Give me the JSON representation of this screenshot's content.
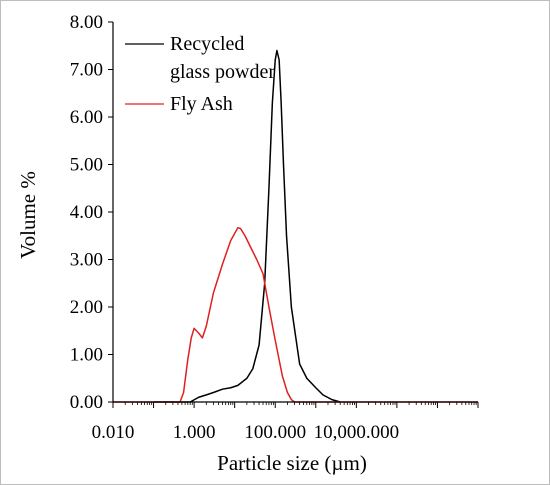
{
  "chart_data": {
    "type": "line",
    "title": "",
    "xlabel": "Particle size (µm)",
    "ylabel": "Volume %",
    "x_scale": "log",
    "xlim": [
      0.01,
      10000000
    ],
    "ylim": [
      0,
      8
    ],
    "x_ticks": [
      "0.010",
      "1.000",
      "100.000",
      "10,000.000"
    ],
    "y_ticks": [
      "0.00",
      "1.00",
      "2.00",
      "3.00",
      "4.00",
      "5.00",
      "6.00",
      "7.00",
      "8.00"
    ],
    "grid": false,
    "legend": "top-left",
    "series": [
      {
        "name": "Recycled glass powder",
        "color": "#000000",
        "x": [
          0.1,
          0.8,
          1.3,
          2.0,
          3.0,
          5.0,
          8.0,
          12,
          20,
          28,
          40,
          55,
          70,
          85,
          100,
          110,
          125,
          140,
          160,
          190,
          250,
          400,
          600,
          1000,
          1500,
          2500,
          4000
        ],
        "y": [
          0,
          0,
          0.1,
          0.15,
          0.2,
          0.27,
          0.3,
          0.35,
          0.5,
          0.7,
          1.2,
          2.5,
          4.5,
          6.3,
          7.2,
          7.4,
          7.2,
          6.3,
          5.0,
          3.5,
          2.0,
          0.8,
          0.5,
          0.3,
          0.15,
          0.05,
          0
        ]
      },
      {
        "name": "Fly Ash",
        "color": "#e02020",
        "x": [
          0.01,
          0.1,
          0.45,
          0.55,
          0.7,
          0.85,
          1.0,
          1.3,
          1.6,
          2.0,
          3.0,
          5.0,
          8.0,
          12,
          14,
          18,
          25,
          35,
          50,
          70,
          100,
          150,
          200,
          250,
          300,
          10000000
        ],
        "y": [
          0,
          0,
          0,
          0.2,
          0.9,
          1.35,
          1.55,
          1.45,
          1.35,
          1.6,
          2.3,
          2.9,
          3.4,
          3.67,
          3.65,
          3.5,
          3.25,
          3.0,
          2.7,
          2.0,
          1.3,
          0.55,
          0.2,
          0.05,
          0,
          0
        ]
      }
    ]
  }
}
